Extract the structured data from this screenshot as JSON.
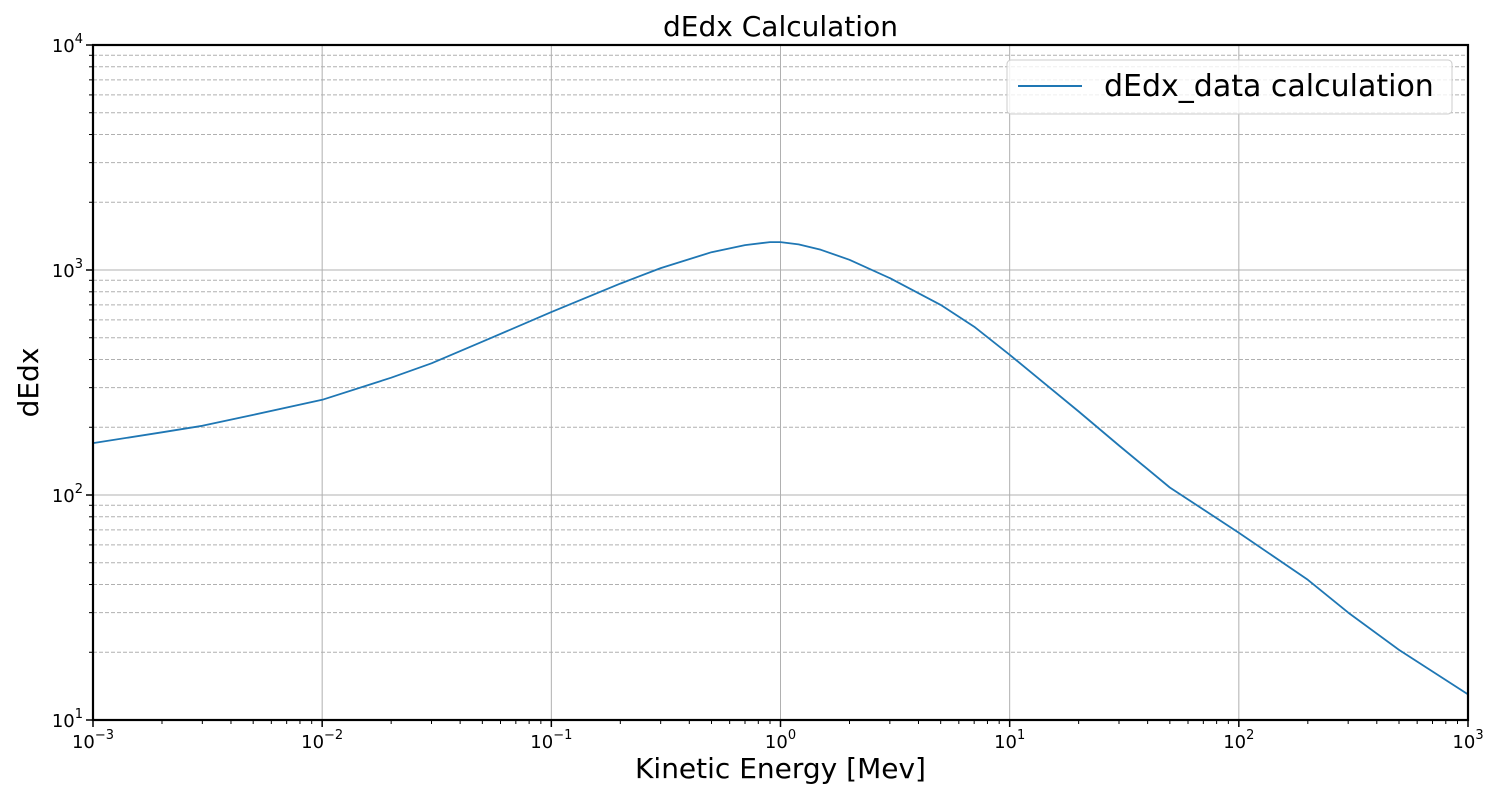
{
  "chart_data": {
    "type": "line",
    "title": "dEdx Calculation",
    "xlabel": "Kinetic Energy [Mev]",
    "ylabel": "dEdx",
    "xscale": "log",
    "yscale": "log",
    "xlim": [
      0.001,
      1000
    ],
    "ylim": [
      10,
      10000
    ],
    "grid": true,
    "legend_placement": "top-right",
    "x_tick_labels": [
      {
        "base": "10",
        "exp": "−3",
        "value": 0.001
      },
      {
        "base": "10",
        "exp": "−2",
        "value": 0.01
      },
      {
        "base": "10",
        "exp": "−1",
        "value": 0.1
      },
      {
        "base": "10",
        "exp": "0",
        "value": 1
      },
      {
        "base": "10",
        "exp": "1",
        "value": 10
      },
      {
        "base": "10",
        "exp": "2",
        "value": 100
      },
      {
        "base": "10",
        "exp": "3",
        "value": 1000
      }
    ],
    "y_tick_labels": [
      {
        "base": "10",
        "exp": "1",
        "value": 10
      },
      {
        "base": "10",
        "exp": "2",
        "value": 100
      },
      {
        "base": "10",
        "exp": "3",
        "value": 1000
      },
      {
        "base": "10",
        "exp": "4",
        "value": 10000
      }
    ],
    "series": [
      {
        "name": "dEdx_data calculation",
        "color": "#1f77b4",
        "x": [
          0.001,
          0.002,
          0.003,
          0.005,
          0.01,
          0.02,
          0.03,
          0.05,
          0.1,
          0.2,
          0.3,
          0.5,
          0.7,
          0.9,
          1.0,
          1.2,
          1.5,
          2,
          3,
          5,
          7,
          10,
          20,
          30,
          50,
          100,
          200,
          300,
          500,
          1000
        ],
        "y": [
          170,
          190,
          203,
          227,
          265,
          332,
          385,
          480,
          650,
          870,
          1020,
          1200,
          1290,
          1330,
          1330,
          1300,
          1230,
          1110,
          920,
          700,
          560,
          420,
          235,
          166,
          108,
          68,
          42,
          30,
          20.5,
          13
        ]
      }
    ]
  }
}
